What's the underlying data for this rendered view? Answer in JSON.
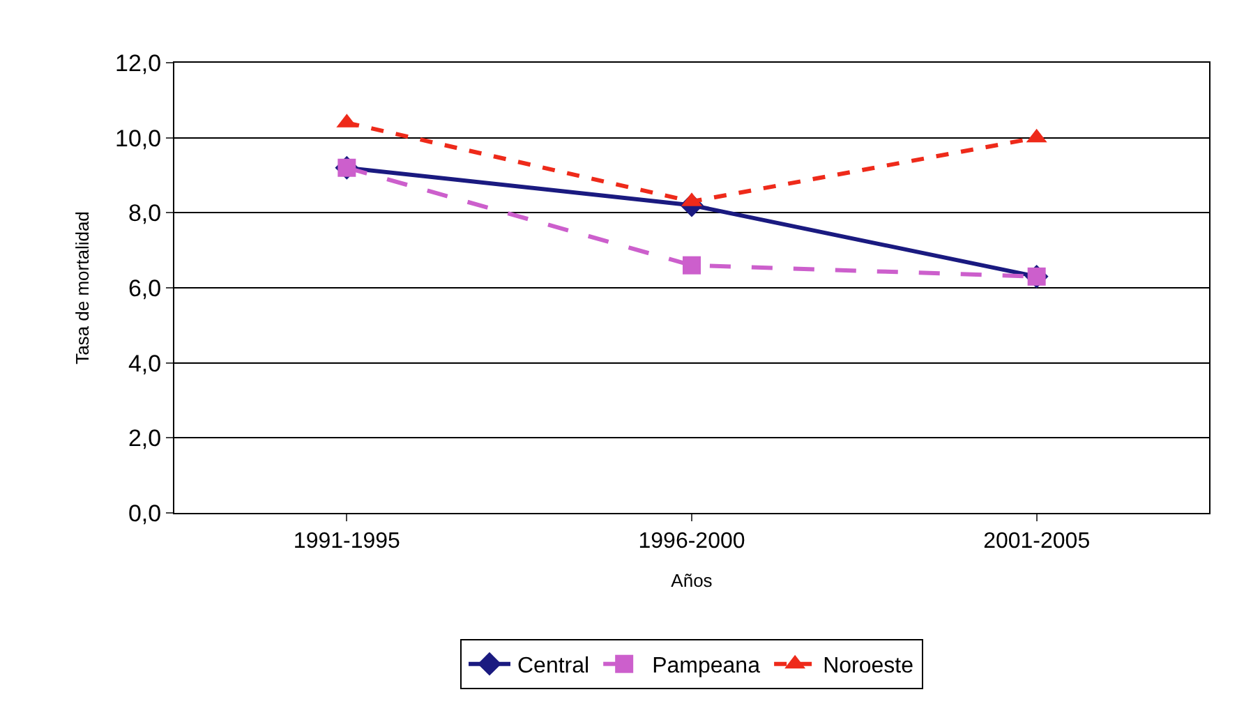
{
  "chart_data": {
    "type": "line",
    "xlabel": "Años",
    "ylabel": "Tasa de mortalidad",
    "categories": [
      "1991-1995",
      "1996-2000",
      "2001-2005"
    ],
    "series": [
      {
        "name": "Central",
        "color": "#1a1a80",
        "values": [
          9.2,
          8.2,
          6.3
        ],
        "marker": "diamond",
        "line_style": "solid"
      },
      {
        "name": "Pampeana",
        "color": "#cc5fcc",
        "values": [
          9.2,
          6.6,
          6.3
        ],
        "marker": "square",
        "line_style": "dashed"
      },
      {
        "name": "Noroeste",
        "color": "#ee2a1a",
        "values": [
          10.4,
          8.3,
          10.0
        ],
        "marker": "triangle",
        "line_style": "dotted"
      }
    ],
    "ylim": [
      0,
      12
    ],
    "yticks": [
      {
        "value": 0,
        "label": "0,0"
      },
      {
        "value": 2,
        "label": "2,0"
      },
      {
        "value": 4,
        "label": "4,0"
      },
      {
        "value": 6,
        "label": "6,0"
      },
      {
        "value": 8,
        "label": "8,0"
      },
      {
        "value": 10,
        "label": "10,0"
      },
      {
        "value": 12,
        "label": "12,0"
      }
    ],
    "grid": "y",
    "legend": "bottom"
  }
}
